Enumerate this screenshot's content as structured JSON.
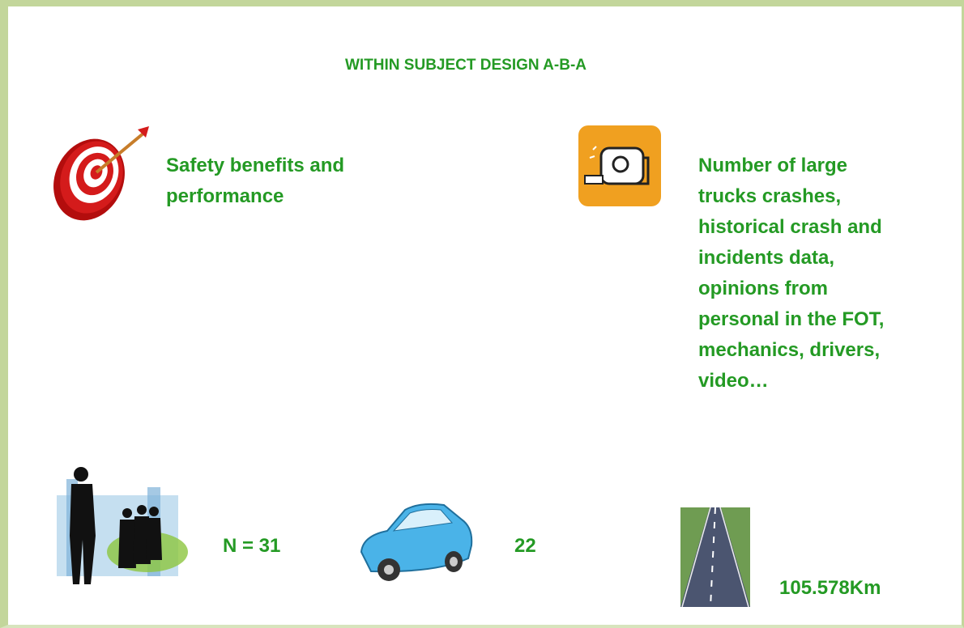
{
  "title": "WITHIN SUBJECT DESIGN A-B-A",
  "objective": "Safety benefits and performance",
  "measures": "Number of large trucks crashes, historical crash and incidents data, opinions from personal in the FOT, mechanics, drivers, video…",
  "participants": "N = 31",
  "vehicles": "22",
  "distance": "105.578Km"
}
